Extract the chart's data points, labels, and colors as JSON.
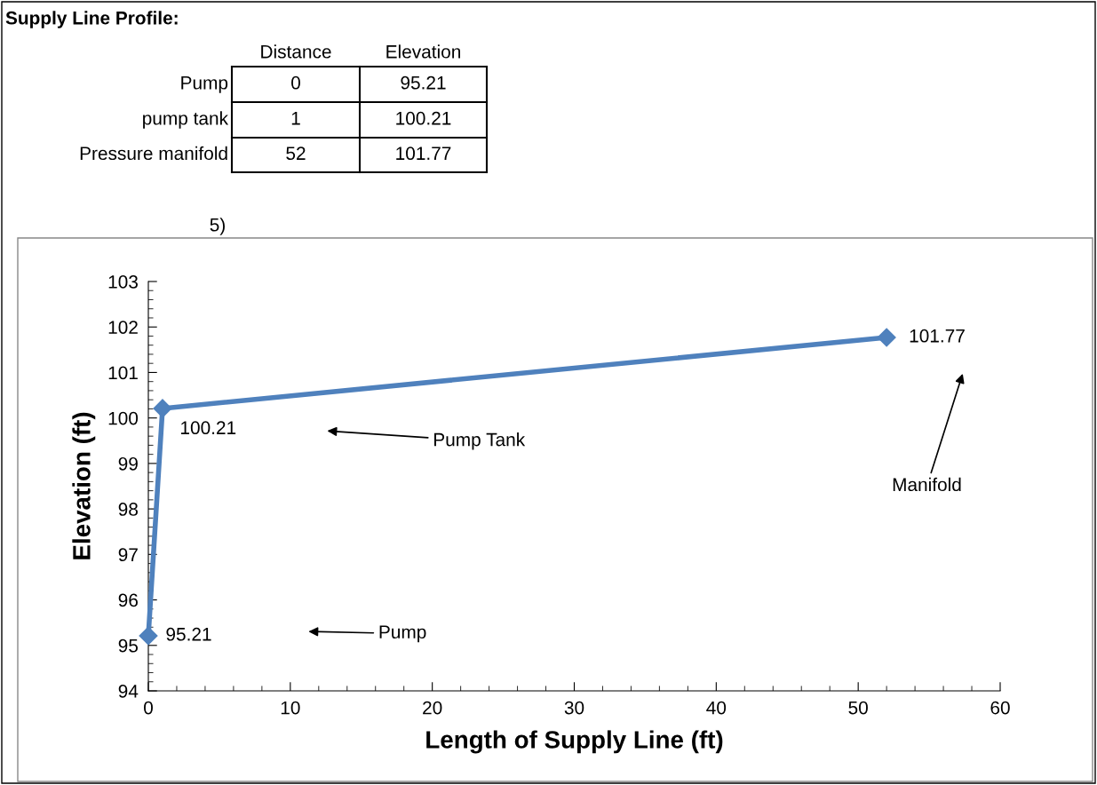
{
  "chart_data": {
    "type": "line",
    "title": "Supply Line Profile:",
    "subtitle": "5)",
    "xlabel": "Length of Supply Line (ft)",
    "ylabel": "Elevation (ft)",
    "x": [
      0,
      1,
      52
    ],
    "values": [
      95.21,
      100.21,
      101.77
    ],
    "color": "#4f81bd",
    "marker": "diamond",
    "line_style": "solid",
    "value_labels": [
      "95.21",
      "100.21",
      "101.77"
    ],
    "xlim": [
      0,
      60
    ],
    "xticks": [
      0,
      10,
      20,
      30,
      40,
      50,
      60
    ],
    "ylim": [
      94,
      103
    ],
    "yticks": [
      94,
      95,
      96,
      97,
      98,
      99,
      100,
      101,
      102,
      103
    ],
    "annotations": [
      "Distance",
      "Elevation",
      "Pump",
      "pump tank",
      "Pressure manifold",
      "0",
      "95.21",
      "1",
      "100.21",
      "52",
      "101.77",
      "Pump",
      "Pump Tank",
      "Manifold"
    ]
  }
}
